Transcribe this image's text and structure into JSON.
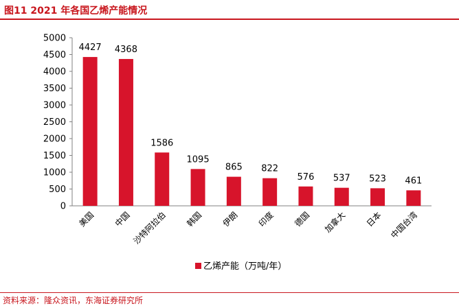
{
  "figure": {
    "title": "图11    2021 年各国乙烯产能情况",
    "source": "资料来源：隆众资讯，东海证券研究所"
  },
  "colors": {
    "accent": "#c8161d",
    "bar": "#d7142b",
    "text": "#000000",
    "axis": "#808080"
  },
  "chart_data": {
    "type": "bar",
    "title": "",
    "xlabel": "",
    "ylabel": "",
    "ylim": [
      0,
      5000
    ],
    "yticks": [
      "0",
      "500",
      "1000",
      "1500",
      "2000",
      "2500",
      "3000",
      "3500",
      "4000",
      "4500",
      "5000"
    ],
    "categories": [
      "美国",
      "中国",
      "沙特阿拉伯",
      "韩国",
      "伊朗",
      "印度",
      "德国",
      "加拿大",
      "日本",
      "中国台湾"
    ],
    "series": [
      {
        "name": "乙烯产能（万吨/年）",
        "values": [
          4427,
          4368,
          1586,
          1095,
          865,
          822,
          576,
          537,
          523,
          461
        ]
      }
    ],
    "value_labels": [
      "4427",
      "4368",
      "1586",
      "1095",
      "865",
      "822",
      "576",
      "537",
      "523",
      "461"
    ],
    "legend": {
      "label": "乙烯产能（万吨/年）",
      "position": "bottom"
    },
    "grid": false
  }
}
